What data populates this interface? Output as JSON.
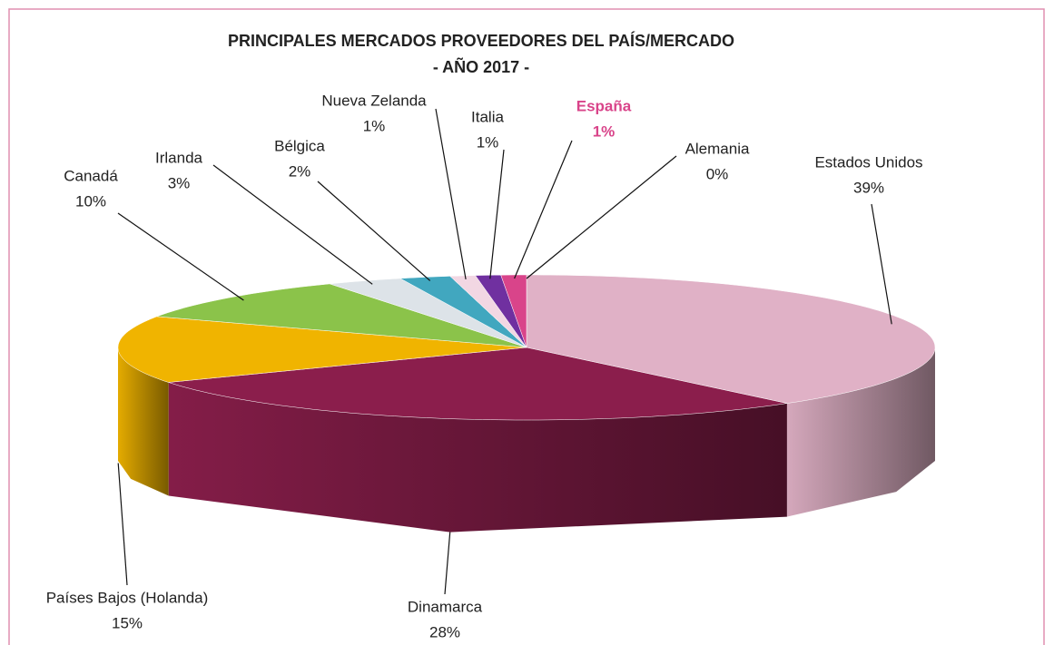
{
  "chart_data": {
    "type": "pie3d",
    "title": "PRINCIPALES MERCADOS PROVEEDORES DEL PAÍS/MERCADO",
    "subtitle": "- AÑO 2017 -",
    "categories": [
      "Estados Unidos",
      "Dinamarca",
      "Países Bajos (Holanda)",
      "Canadá",
      "Irlanda",
      "Bélgica",
      "Nueva Zelanda",
      "Italia",
      "España",
      "Alemania"
    ],
    "values": [
      39,
      28,
      15,
      10,
      3,
      2,
      1,
      1,
      1,
      0
    ],
    "value_labels": [
      "39%",
      "28%",
      "15%",
      "10%",
      "3%",
      "2%",
      "1%",
      "1%",
      "1%",
      "0%"
    ],
    "colors": [
      "#e0b1c6",
      "#8b1e4c",
      "#f0b400",
      "#8bc34a",
      "#dde3e8",
      "#41a7bf",
      "#f2d7e3",
      "#7030a0",
      "#d9448a",
      "#a9b8d8"
    ],
    "label_colors": [
      "#222222",
      "#222222",
      "#222222",
      "#222222",
      "#222222",
      "#222222",
      "#222222",
      "#222222",
      "#d9448a",
      "#222222"
    ]
  }
}
